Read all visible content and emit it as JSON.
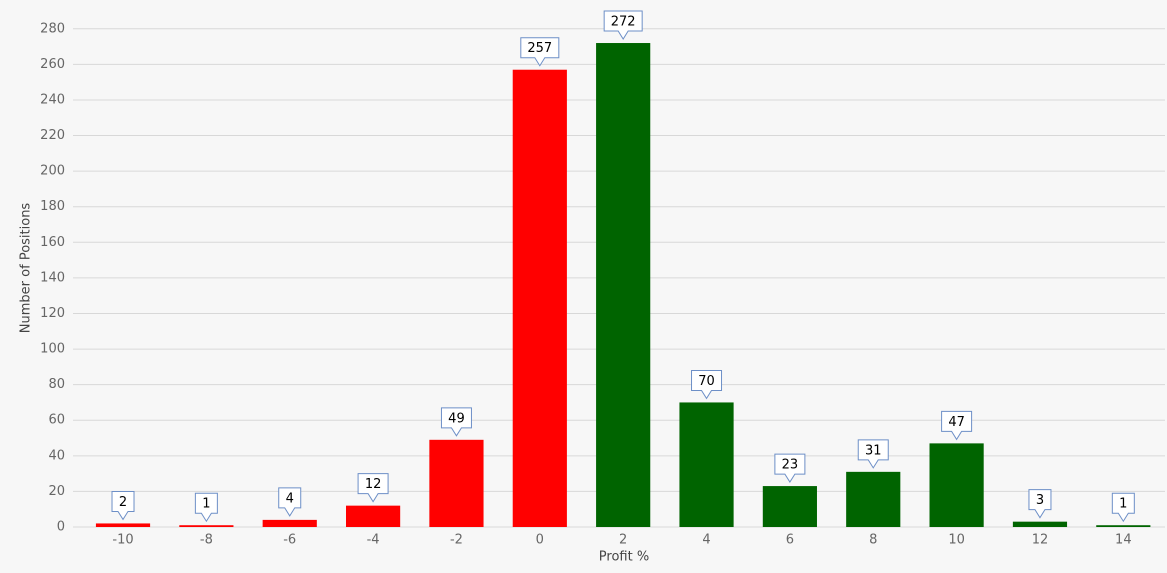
{
  "chart_data": {
    "type": "bar",
    "x_label": "Profit %",
    "y_label": "Number of Positions",
    "x": [
      -10,
      -8,
      -6,
      -4,
      -2,
      0,
      2,
      4,
      6,
      8,
      10,
      12,
      14
    ],
    "values": [
      2,
      1,
      4,
      12,
      49,
      257,
      272,
      70,
      23,
      31,
      47,
      3,
      1
    ],
    "colors": [
      "#ff0000",
      "#ff0000",
      "#ff0000",
      "#ff0000",
      "#ff0000",
      "#ff0000",
      "#006400",
      "#006400",
      "#006400",
      "#006400",
      "#006400",
      "#006400",
      "#006400"
    ],
    "xlim": [
      -11.2,
      15
    ],
    "xticks": [
      -10,
      -8,
      -6,
      -4,
      -2,
      0,
      2,
      4,
      6,
      8,
      10,
      12,
      14
    ],
    "ylim": [
      0,
      290
    ],
    "yticks": [
      0,
      20,
      40,
      60,
      80,
      100,
      120,
      140,
      160,
      180,
      200,
      220,
      240,
      260,
      280
    ],
    "grid": true
  }
}
